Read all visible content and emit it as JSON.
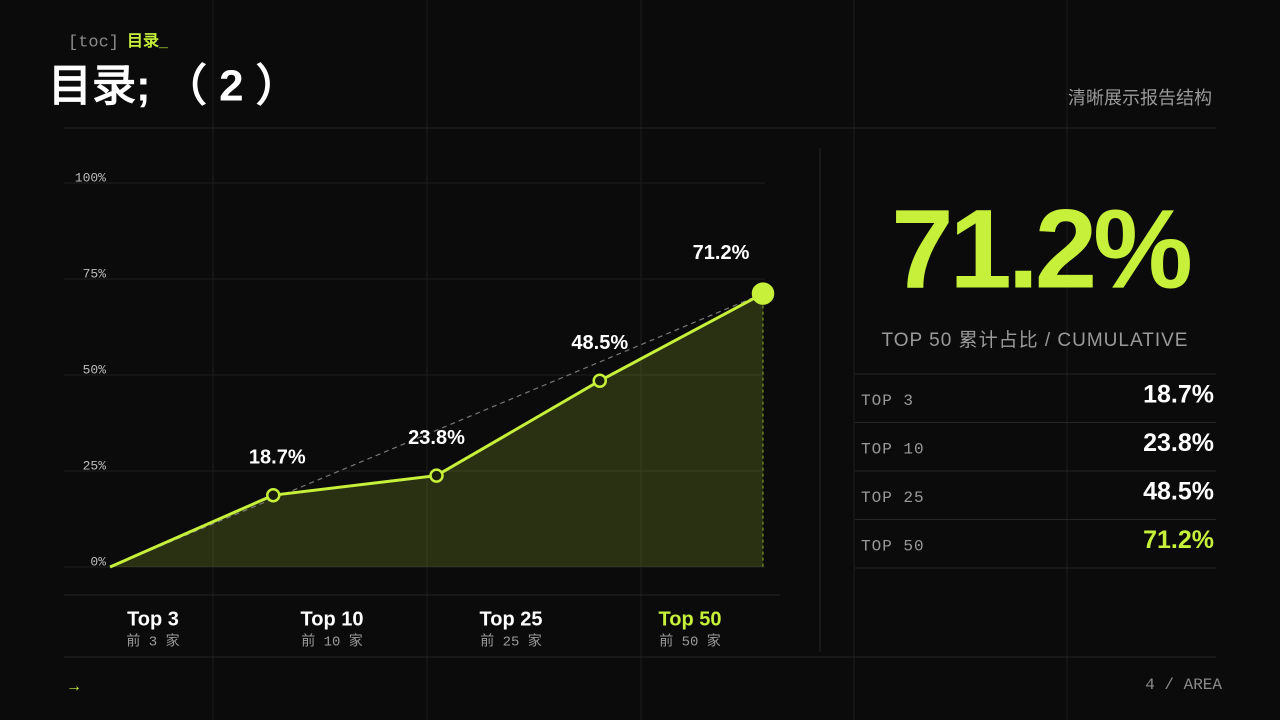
{
  "header": {
    "tag_prefix": "[toc]",
    "tag": "目录_",
    "title": "目录; （ 2 ）",
    "subtitle": "清晰展示报告结构"
  },
  "chart_data": {
    "type": "area",
    "categories": [
      null,
      "Top 3",
      "Top 10",
      "Top 25",
      "Top 50"
    ],
    "category_notes": [
      null,
      "前 3 家",
      "前 10 家",
      "前 25 家",
      "前 50 家"
    ],
    "values": [
      0,
      18.7,
      23.8,
      48.5,
      71.2
    ],
    "value_labels": [
      null,
      "18.7%",
      "23.8%",
      "48.5%",
      "71.2%"
    ],
    "color": "#c6f03a",
    "ylim": [
      0,
      100
    ],
    "yticks": [
      {
        "value": 0,
        "label": "0%"
      },
      {
        "value": 25,
        "label": "25%"
      },
      {
        "value": 50,
        "label": "50%"
      },
      {
        "value": 75,
        "label": "75%"
      },
      {
        "value": 100,
        "label": "100%"
      }
    ],
    "grid": true
  },
  "summary": {
    "big_value": "71.2%",
    "caption": "TOP 50  累计占比 / CUMULATIVE",
    "rows": [
      [
        "TOP 3",
        "18.7%"
      ],
      [
        "TOP 10",
        "23.8%"
      ],
      [
        "TOP 25",
        "48.5%"
      ],
      [
        "TOP 50",
        "71.2%"
      ]
    ]
  },
  "footer": {
    "arrow": "→",
    "page": "4 / AREA"
  }
}
